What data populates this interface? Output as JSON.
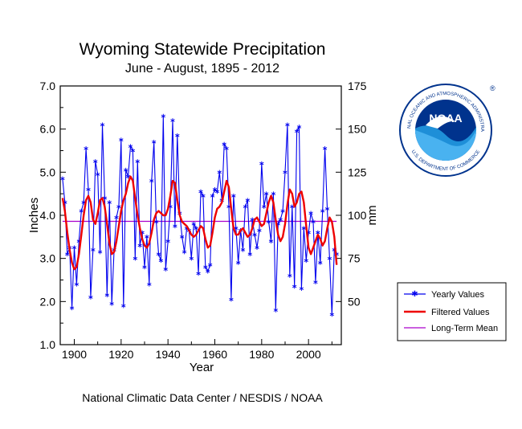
{
  "chart_data": {
    "type": "line",
    "title": "Wyoming Statewide Precipitation",
    "subtitle": "June - August, 1895 - 2012",
    "xlabel": "Year",
    "ylabel": "Inches",
    "ylabel_right": "mm",
    "xlim": [
      1894,
      2014
    ],
    "ylim": [
      1.0,
      7.0
    ],
    "ylim_right": [
      25,
      175
    ],
    "x_ticks": [
      "1900",
      "1920",
      "1940",
      "1960",
      "1980",
      "2000"
    ],
    "x_tick_values": [
      1900,
      1920,
      1940,
      1960,
      1980,
      2000
    ],
    "y_ticks": [
      "1.0",
      "2.0",
      "3.0",
      "4.0",
      "5.0",
      "6.0",
      "7.0"
    ],
    "y_tick_values": [
      1.0,
      2.0,
      3.0,
      4.0,
      5.0,
      6.0,
      7.0
    ],
    "y_right_ticks": [
      "50",
      "75",
      "100",
      "125",
      "150",
      "175"
    ],
    "y_right_tick_values": [
      50,
      75,
      100,
      125,
      150,
      175
    ],
    "series": [
      {
        "name": "Yearly Values",
        "color": "#0000ee",
        "x": [
          1895,
          1896,
          1897,
          1898,
          1899,
          1900,
          1901,
          1902,
          1903,
          1904,
          1905,
          1906,
          1907,
          1908,
          1909,
          1910,
          1911,
          1912,
          1913,
          1914,
          1915,
          1916,
          1917,
          1918,
          1919,
          1920,
          1921,
          1922,
          1923,
          1924,
          1925,
          1926,
          1927,
          1928,
          1929,
          1930,
          1931,
          1932,
          1933,
          1934,
          1935,
          1936,
          1937,
          1938,
          1939,
          1940,
          1941,
          1942,
          1943,
          1944,
          1945,
          1946,
          1947,
          1948,
          1949,
          1950,
          1951,
          1952,
          1953,
          1954,
          1955,
          1956,
          1957,
          1958,
          1959,
          1960,
          1961,
          1962,
          1963,
          1964,
          1965,
          1966,
          1967,
          1968,
          1969,
          1970,
          1971,
          1972,
          1973,
          1974,
          1975,
          1976,
          1977,
          1978,
          1979,
          1980,
          1981,
          1982,
          1983,
          1984,
          1985,
          1986,
          1987,
          1988,
          1989,
          1990,
          1991,
          1992,
          1993,
          1994,
          1995,
          1996,
          1997,
          1998,
          1999,
          2000,
          2001,
          2002,
          2003,
          2004,
          2005,
          2006,
          2007,
          2008,
          2009,
          2010,
          2011,
          2012
        ],
        "y": [
          4.85,
          4.3,
          3.1,
          3.25,
          1.85,
          3.25,
          2.4,
          3.4,
          4.1,
          4.3,
          5.55,
          4.6,
          2.1,
          3.2,
          5.25,
          4.95,
          3.15,
          6.1,
          4.4,
          2.15,
          4.3,
          1.95,
          3.2,
          3.95,
          4.2,
          5.75,
          1.9,
          5.05,
          4.9,
          5.6,
          5.5,
          3.0,
          5.25,
          3.3,
          3.6,
          2.8,
          3.5,
          2.4,
          4.8,
          5.7,
          3.85,
          3.1,
          2.95,
          6.3,
          2.75,
          3.4,
          4.2,
          6.2,
          3.75,
          5.85,
          4.05,
          3.5,
          3.15,
          3.7,
          3.65,
          3.0,
          3.8,
          3.7,
          2.65,
          4.55,
          4.45,
          2.8,
          2.7,
          2.85,
          4.45,
          4.6,
          4.55,
          5.0,
          4.35,
          5.65,
          5.55,
          4.2,
          2.05,
          4.45,
          3.7,
          2.9,
          3.65,
          3.2,
          4.2,
          4.35,
          3.1,
          3.9,
          3.55,
          3.25,
          3.65,
          5.2,
          4.2,
          4.5,
          3.85,
          3.4,
          4.5,
          1.8,
          3.8,
          3.9,
          4.1,
          5.0,
          6.1,
          2.6,
          4.2,
          2.35,
          5.95,
          6.05,
          2.3,
          3.7,
          2.95,
          3.6,
          4.05,
          3.85,
          2.45,
          3.6,
          2.9,
          4.1,
          5.55,
          4.15,
          3.0,
          1.7,
          3.2,
          3.1
        ]
      },
      {
        "name": "Filtered Values",
        "color": "#ee0000",
        "x": [
          1895,
          1896,
          1897,
          1898,
          1899,
          1900,
          1901,
          1902,
          1903,
          1904,
          1905,
          1906,
          1907,
          1908,
          1909,
          1910,
          1911,
          1912,
          1913,
          1914,
          1915,
          1916,
          1917,
          1918,
          1919,
          1920,
          1921,
          1922,
          1923,
          1924,
          1925,
          1926,
          1927,
          1928,
          1929,
          1930,
          1931,
          1932,
          1933,
          1934,
          1935,
          1936,
          1937,
          1938,
          1939,
          1940,
          1941,
          1942,
          1943,
          1944,
          1945,
          1946,
          1947,
          1948,
          1949,
          1950,
          1951,
          1952,
          1953,
          1954,
          1955,
          1956,
          1957,
          1958,
          1959,
          1960,
          1961,
          1962,
          1963,
          1964,
          1965,
          1966,
          1967,
          1968,
          1969,
          1970,
          1971,
          1972,
          1973,
          1974,
          1975,
          1976,
          1977,
          1978,
          1979,
          1980,
          1981,
          1982,
          1983,
          1984,
          1985,
          1986,
          1987,
          1988,
          1989,
          1990,
          1991,
          1992,
          1993,
          1994,
          1995,
          1996,
          1997,
          1998,
          1999,
          2000,
          2001,
          2002,
          2003,
          2004,
          2005,
          2006,
          2007,
          2008,
          2009,
          2010,
          2011,
          2012
        ],
        "y": [
          4.4,
          4.1,
          3.6,
          3.2,
          2.9,
          2.75,
          2.8,
          3.1,
          3.55,
          4.0,
          4.35,
          4.45,
          4.3,
          3.9,
          3.8,
          4.05,
          4.35,
          4.4,
          4.2,
          3.8,
          3.35,
          3.1,
          3.15,
          3.4,
          3.75,
          4.1,
          4.35,
          4.5,
          4.75,
          4.9,
          4.8,
          4.4,
          4.0,
          3.7,
          3.45,
          3.3,
          3.25,
          3.35,
          3.6,
          3.9,
          4.05,
          4.1,
          4.05,
          4.0,
          4.0,
          4.15,
          4.45,
          4.8,
          4.75,
          4.35,
          4.0,
          3.85,
          3.8,
          3.75,
          3.65,
          3.55,
          3.5,
          3.55,
          3.65,
          3.75,
          3.7,
          3.45,
          3.25,
          3.3,
          3.6,
          3.95,
          4.15,
          4.2,
          4.3,
          4.55,
          4.8,
          4.65,
          4.15,
          3.7,
          3.55,
          3.55,
          3.65,
          3.7,
          3.6,
          3.5,
          3.55,
          3.7,
          3.9,
          3.95,
          3.85,
          3.75,
          3.8,
          4.05,
          4.3,
          4.45,
          4.3,
          3.9,
          3.55,
          3.4,
          3.5,
          3.8,
          4.25,
          4.6,
          4.5,
          4.2,
          4.3,
          4.5,
          4.55,
          4.3,
          3.75,
          3.25,
          3.1,
          3.25,
          3.4,
          3.55,
          3.45,
          3.3,
          3.4,
          3.7,
          3.95,
          3.85,
          3.5,
          2.85
        ]
      },
      {
        "name": "Long-Term Mean",
        "color": "#aa00cc",
        "x": [
          1895,
          2012
        ],
        "y": [
          3.86,
          3.86
        ]
      }
    ],
    "legend_position": "right",
    "grid": false
  },
  "footer": "National Climatic Data Center / NESDIS / NOAA",
  "logo": {
    "name": "NOAA",
    "ring_text": "NATIONAL OCEANIC AND ATMOSPHERIC ADMINISTRATION",
    "ring_text_bottom": "U.S. DEPARTMENT OF COMMERCE",
    "registered_mark": "®"
  }
}
